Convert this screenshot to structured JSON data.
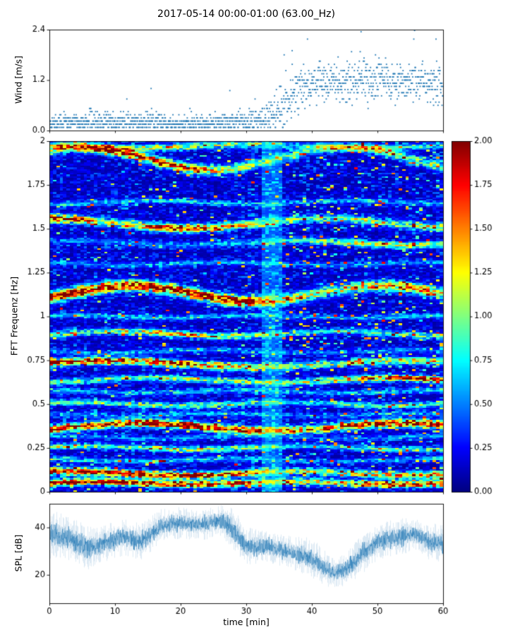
{
  "title": "2017-05-14 00:00-01:00 (63.00_Hz)",
  "accent_color": "#1f77b4",
  "chart_data": [
    {
      "type": "scatter",
      "name": "wind-speed",
      "ylabel": "Wind [m/s]",
      "xlim": [
        0,
        60
      ],
      "ylim": [
        0.0,
        2.4
      ],
      "yticks": [
        0.0,
        1.2,
        2.4
      ],
      "ytick_labels": [
        "0.0",
        "1.2",
        "2.4"
      ],
      "color": "#1f77b4",
      "quantize_step": 0.075,
      "profile": {
        "x": [
          0,
          5,
          10,
          15,
          20,
          25,
          30,
          32,
          34,
          36,
          38,
          40,
          44,
          48,
          52,
          56,
          60
        ],
        "mean": [
          0.15,
          0.18,
          0.2,
          0.2,
          0.15,
          0.18,
          0.22,
          0.25,
          0.35,
          0.6,
          0.95,
          1.1,
          1.15,
          1.2,
          1.2,
          1.15,
          1.1
        ],
        "spread": [
          0.1,
          0.12,
          0.14,
          0.13,
          0.1,
          0.12,
          0.14,
          0.16,
          0.25,
          0.3,
          0.3,
          0.28,
          0.28,
          0.3,
          0.3,
          0.28,
          0.28
        ]
      },
      "outliers": [
        {
          "t": 47.5,
          "v": 2.35
        },
        {
          "t": 37.0,
          "v": 1.9
        },
        {
          "t": 15.5,
          "v": 1.0
        },
        {
          "t": 27.5,
          "v": 0.95
        },
        {
          "t": 44.0,
          "v": 1.75
        }
      ],
      "n_points": 1500
    },
    {
      "type": "heatmap",
      "name": "fft-spectrogram",
      "ylabel": "FFT Frequenz [Hz]",
      "xlim": [
        0,
        60
      ],
      "ylim": [
        0,
        2
      ],
      "yticks": [
        0,
        0.25,
        0.5,
        0.75,
        1,
        1.25,
        1.5,
        1.75,
        2
      ],
      "ytick_labels": [
        "0",
        "0.25",
        "0.5",
        "0.75",
        "1",
        "1.25",
        "1.5",
        "1.75",
        "2"
      ],
      "colormap": "jet",
      "grid": {
        "time_bins": 115,
        "freq_bins": 200
      },
      "background_level": 0.5,
      "disturbance": {
        "x0": 32.5,
        "x1": 35.5,
        "boost": 0.3,
        "band_damp": 0.6
      },
      "speckle": {
        "left_prob": 0.02,
        "right_prob": 0.055,
        "split": 36
      },
      "amp_x": [
        0,
        10,
        20,
        30,
        40,
        50,
        60
      ],
      "bands": [
        {
          "freq": 0.05,
          "wiggle": 0.008,
          "period": 30,
          "phase": 0.0,
          "width": 0.013,
          "amp": [
            1.9,
            1.7,
            1.8,
            1.5,
            1.1,
            1.4,
            1.6
          ]
        },
        {
          "freq": 0.105,
          "wiggle": 0.012,
          "period": 35,
          "phase": 1.0,
          "width": 0.013,
          "amp": [
            2.0,
            1.8,
            1.9,
            1.5,
            0.9,
            1.2,
            1.5
          ]
        },
        {
          "freq": 0.18,
          "wiggle": 0.008,
          "period": 30,
          "phase": 2.0,
          "width": 0.01,
          "amp": [
            0.6,
            0.5,
            0.7,
            0.5,
            0.35,
            0.45,
            0.55
          ]
        },
        {
          "freq": 0.25,
          "wiggle": 0.01,
          "period": 33,
          "phase": 0.5,
          "width": 0.011,
          "amp": [
            0.9,
            0.7,
            1.0,
            0.8,
            0.5,
            0.7,
            0.8
          ]
        },
        {
          "freq": 0.31,
          "wiggle": 0.008,
          "period": 30,
          "phase": 1.5,
          "width": 0.01,
          "amp": [
            0.4,
            0.35,
            0.45,
            0.4,
            0.3,
            0.35,
            0.4
          ]
        },
        {
          "freq": 0.37,
          "wiggle": 0.022,
          "period": 40,
          "phase": -0.6,
          "width": 0.015,
          "amp": [
            1.8,
            1.6,
            2.0,
            1.7,
            1.4,
            1.8,
            2.0
          ]
        },
        {
          "freq": 0.44,
          "wiggle": 0.008,
          "period": 30,
          "phase": 2.4,
          "width": 0.01,
          "amp": [
            0.4,
            0.35,
            0.5,
            0.4,
            0.3,
            0.4,
            0.45
          ]
        },
        {
          "freq": 0.5,
          "wiggle": 0.01,
          "period": 32,
          "phase": 0.8,
          "width": 0.011,
          "amp": [
            0.9,
            0.8,
            1.0,
            0.7,
            0.55,
            0.75,
            0.7
          ]
        },
        {
          "freq": 0.57,
          "wiggle": 0.008,
          "period": 30,
          "phase": 1.8,
          "width": 0.01,
          "amp": [
            0.5,
            0.45,
            0.55,
            0.5,
            0.4,
            0.5,
            0.5
          ]
        },
        {
          "freq": 0.635,
          "wiggle": 0.014,
          "period": 36,
          "phase": -1.2,
          "width": 0.012,
          "amp": [
            0.8,
            0.7,
            0.9,
            1.0,
            0.9,
            1.5,
            1.7
          ]
        },
        {
          "freq": 0.73,
          "wiggle": 0.018,
          "period": 45,
          "phase": 0.3,
          "width": 0.014,
          "amp": [
            1.7,
            1.5,
            1.6,
            1.3,
            0.8,
            1.0,
            1.1
          ]
        },
        {
          "freq": 0.8,
          "wiggle": 0.008,
          "period": 30,
          "phase": 2.8,
          "width": 0.01,
          "amp": [
            0.4,
            0.35,
            0.45,
            0.4,
            0.3,
            0.35,
            0.4
          ]
        },
        {
          "freq": 0.9,
          "wiggle": 0.014,
          "period": 34,
          "phase": -0.4,
          "width": 0.012,
          "amp": [
            0.8,
            0.9,
            1.3,
            0.9,
            0.6,
            0.7,
            0.8
          ]
        },
        {
          "freq": 1.0,
          "wiggle": 0.008,
          "period": 30,
          "phase": 1.1,
          "width": 0.01,
          "amp": [
            0.5,
            0.45,
            0.55,
            0.5,
            0.4,
            0.45,
            0.5
          ]
        },
        {
          "freq": 1.13,
          "wiggle": 0.045,
          "period": 38,
          "phase": -0.5,
          "width": 0.02,
          "amp": [
            2.0,
            1.9,
            2.0,
            1.8,
            1.0,
            1.2,
            1.4
          ]
        },
        {
          "freq": 1.3,
          "wiggle": 0.008,
          "period": 30,
          "phase": 2.1,
          "width": 0.01,
          "amp": [
            0.4,
            0.35,
            0.45,
            0.4,
            0.35,
            0.4,
            0.4
          ]
        },
        {
          "freq": 1.42,
          "wiggle": 0.012,
          "period": 34,
          "phase": 0.9,
          "width": 0.012,
          "amp": [
            0.35,
            0.3,
            0.4,
            0.5,
            0.8,
            1.2,
            0.9
          ]
        },
        {
          "freq": 1.53,
          "wiggle": 0.028,
          "period": 42,
          "phase": 1.6,
          "width": 0.015,
          "amp": [
            1.9,
            1.0,
            1.9,
            1.2,
            0.7,
            0.9,
            0.85
          ]
        },
        {
          "freq": 1.65,
          "wiggle": 0.01,
          "period": 30,
          "phase": -1.8,
          "width": 0.01,
          "amp": [
            0.5,
            0.45,
            0.6,
            0.5,
            0.4,
            0.45,
            0.5
          ]
        },
        {
          "freq": 1.9,
          "wiggle": 0.065,
          "period": 40,
          "phase": 0.8,
          "width": 0.018,
          "amp": [
            1.0,
            1.8,
            1.6,
            1.0,
            0.7,
            0.8,
            0.9
          ]
        },
        {
          "freq": 1.97,
          "wiggle": 0.01,
          "period": 36,
          "phase": 2.5,
          "width": 0.012,
          "amp": [
            0.8,
            0.6,
            1.2,
            0.7,
            0.5,
            0.6,
            0.6
          ]
        }
      ],
      "colorbar": {
        "vmin": 0.0,
        "vmax": 2.0,
        "ticks": [
          0.0,
          0.25,
          0.5,
          0.75,
          1.0,
          1.25,
          1.5,
          1.75,
          2.0
        ],
        "tick_labels": [
          "0.00",
          "0.25",
          "0.50",
          "0.75",
          "1.00",
          "1.25",
          "1.50",
          "1.75",
          "2.00"
        ]
      }
    },
    {
      "type": "line",
      "name": "spl",
      "ylabel": "SPL [dB]",
      "xlabel": "time [min]",
      "xlim": [
        0,
        60
      ],
      "ylim": [
        8,
        50
      ],
      "xticks": [
        0,
        10,
        20,
        30,
        40,
        50,
        60
      ],
      "xtick_labels": [
        "0",
        "10",
        "20",
        "30",
        "40",
        "50",
        "60"
      ],
      "yticks": [
        20,
        40
      ],
      "ytick_labels": [
        "20",
        "40"
      ],
      "color": "#1f77b4",
      "envelope": {
        "x": [
          0,
          3,
          6,
          8,
          11,
          14,
          17,
          20,
          23,
          26,
          28,
          30,
          33,
          36,
          39,
          41,
          43,
          45,
          47,
          50,
          53,
          56,
          58,
          60
        ],
        "mean": [
          37,
          35,
          31,
          33,
          36,
          34,
          41,
          42,
          41,
          43,
          39,
          32,
          32,
          30,
          28,
          25,
          21,
          22,
          27,
          34,
          36,
          37,
          34,
          33
        ],
        "spread": [
          8,
          7,
          7,
          6,
          6,
          6,
          5,
          5,
          5,
          5,
          7,
          6,
          5,
          5,
          6,
          6,
          5,
          5,
          6,
          6,
          6,
          5,
          6,
          6
        ]
      }
    }
  ]
}
